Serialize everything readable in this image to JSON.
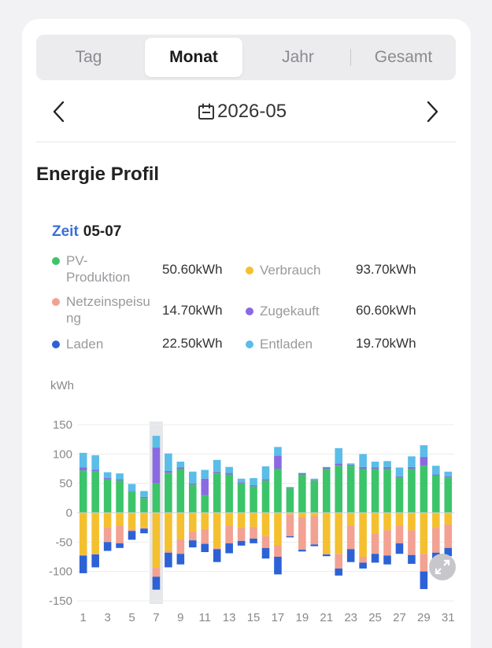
{
  "tabs": [
    {
      "label": "Tag",
      "active": false
    },
    {
      "label": "Monat",
      "active": true
    },
    {
      "label": "Jahr",
      "active": false
    },
    {
      "label": "Gesamt",
      "active": false
    }
  ],
  "date": {
    "value": "2026-05"
  },
  "section_title": "Energie Profil",
  "tooltip": {
    "zeit_label": "Zeit",
    "zeit_value": "05-07",
    "items": [
      {
        "label_lines": [
          "PV-",
          "Produktion"
        ],
        "value": "50.60kWh",
        "color": "#3cc46a"
      },
      {
        "label_lines": [
          "Verbrauch"
        ],
        "value": "93.70kWh",
        "color": "#f5c02f"
      },
      {
        "label_lines": [
          "Netzeinspeisu",
          "ng"
        ],
        "value": "14.70kWh",
        "color": "#f2a192"
      },
      {
        "label_lines": [
          "Zugekauft"
        ],
        "value": "60.60kWh",
        "color": "#8a6ae0"
      },
      {
        "label_lines": [
          "Laden"
        ],
        "value": "22.50kWh",
        "color": "#2c62d6"
      },
      {
        "label_lines": [
          "Entladen"
        ],
        "value": "19.70kWh",
        "color": "#5bbde8"
      }
    ]
  },
  "chart_data": {
    "type": "bar",
    "stacked": true,
    "unit_label": "kWh",
    "ylim": [
      -150,
      150
    ],
    "yticks": [
      150,
      100,
      50,
      0,
      -50,
      -100,
      -150
    ],
    "xtick_labels": [
      "1",
      "3",
      "5",
      "7",
      "9",
      "11",
      "13",
      "15",
      "17",
      "19",
      "21",
      "23",
      "25",
      "27",
      "29",
      "31"
    ],
    "highlight_day": 7,
    "grid": true,
    "days": [
      1,
      2,
      3,
      4,
      5,
      6,
      7,
      8,
      9,
      10,
      11,
      12,
      13,
      14,
      15,
      16,
      17,
      18,
      19,
      20,
      21,
      22,
      23,
      24,
      25,
      26,
      27,
      28,
      29,
      30,
      31
    ],
    "series": [
      {
        "name": "PV-Produktion",
        "color": "#3cc46a",
        "values": [
          72,
          70,
          57,
          55,
          36,
          25,
          50,
          68,
          75,
          48,
          30,
          68,
          65,
          50,
          45,
          55,
          75,
          42,
          65,
          55,
          75,
          80,
          80,
          75,
          75,
          75,
          60,
          75,
          80,
          63,
          60
        ]
      },
      {
        "name": "Zugekauft",
        "color": "#8a6ae0",
        "values": [
          5,
          3,
          2,
          2,
          1,
          2,
          61,
          3,
          2,
          2,
          28,
          2,
          3,
          2,
          2,
          2,
          22,
          1,
          2,
          1,
          2,
          4,
          2,
          3,
          2,
          3,
          2,
          3,
          15,
          2,
          2
        ]
      },
      {
        "name": "Entladen",
        "color": "#5bbde8",
        "values": [
          25,
          25,
          10,
          10,
          12,
          10,
          20,
          30,
          10,
          20,
          15,
          20,
          10,
          6,
          12,
          22,
          15,
          1,
          1,
          2,
          1,
          26,
          2,
          22,
          10,
          10,
          15,
          18,
          20,
          15,
          8
        ]
      },
      {
        "name": "Verbrauch",
        "color": "#f5c02f",
        "values": [
          -72,
          -70,
          -25,
          -22,
          -28,
          -25,
          -94,
          -65,
          -45,
          -32,
          -28,
          -60,
          -22,
          -26,
          -24,
          -40,
          -55,
          -3,
          -8,
          -6,
          -70,
          -70,
          -22,
          -75,
          -35,
          -30,
          -22,
          -30,
          -70,
          -26,
          -20
        ]
      },
      {
        "name": "Netzeinspeisung",
        "color": "#f2a192",
        "values": [
          -1,
          -1,
          -25,
          -30,
          -3,
          -2,
          -15,
          -3,
          -25,
          -15,
          -25,
          -2,
          -30,
          -22,
          -20,
          -20,
          -20,
          -37,
          -55,
          -48,
          -1,
          -25,
          -40,
          -10,
          -35,
          -43,
          -30,
          -42,
          -30,
          -42,
          -40
        ]
      },
      {
        "name": "Laden",
        "color": "#2c62d6",
        "values": [
          -30,
          -22,
          -15,
          -8,
          -15,
          -8,
          -22,
          -25,
          -18,
          -12,
          -14,
          -22,
          -17,
          -8,
          -8,
          -18,
          -30,
          -2,
          -3,
          -3,
          -3,
          -12,
          -22,
          -10,
          -15,
          -15,
          -18,
          -15,
          -30,
          -10,
          -14
        ]
      }
    ]
  },
  "icons": {
    "calendar": "calendar-icon",
    "prev": "chevron-left-icon",
    "next": "chevron-right-icon",
    "expand": "expand-icon"
  }
}
